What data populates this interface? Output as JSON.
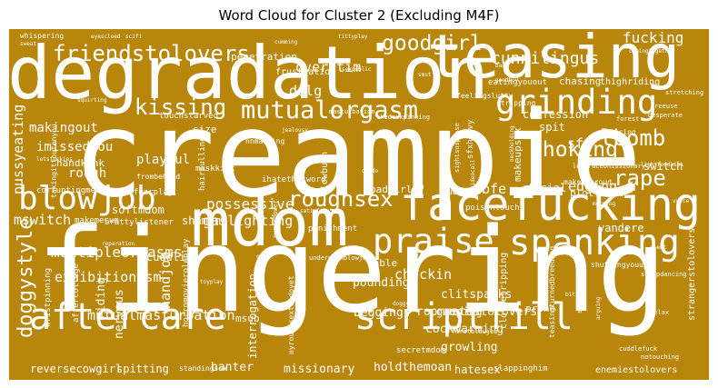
{
  "chart_data": {
    "type": "wordcloud",
    "title": "Word Cloud for Cluster 2 (Excluding M4F)",
    "colors": {
      "background": "#b8860b",
      "word": "#ffffff"
    },
    "words": [
      {
        "text": "creampie",
        "weight": 100
      },
      {
        "text": "fingering",
        "weight": 96
      },
      {
        "text": "degradation",
        "weight": 58
      },
      {
        "text": "mdom",
        "weight": 54
      },
      {
        "text": "teasing",
        "weight": 48
      },
      {
        "text": "facefucking",
        "weight": 36
      },
      {
        "text": "scriptfill",
        "weight": 30
      },
      {
        "text": "aftercare",
        "weight": 30
      },
      {
        "text": "spanking",
        "weight": 29
      },
      {
        "text": "grinding",
        "weight": 28
      },
      {
        "text": "praise",
        "weight": 28
      },
      {
        "text": "blowjob",
        "weight": 26
      },
      {
        "text": "mutualorgasm",
        "weight": 20
      },
      {
        "text": "friendstolovers",
        "weight": 18
      },
      {
        "text": "kissing",
        "weight": 17
      },
      {
        "text": "roughsex",
        "weight": 17
      },
      {
        "text": "lbomb",
        "weight": 17
      },
      {
        "text": "choking",
        "weight": 17
      },
      {
        "text": "rape",
        "weight": 17
      },
      {
        "text": "goodgirl",
        "weight": 16
      },
      {
        "text": "doggystyle",
        "weight": 16
      },
      {
        "text": "cunnilingus",
        "weight": 13
      },
      {
        "text": "fucking",
        "weight": 12
      },
      {
        "text": "possessive",
        "weight": 12
      },
      {
        "text": "multipleorgasms",
        "weight": 12
      },
      {
        "text": "mutualmasturbation",
        "weight": 12
      },
      {
        "text": "pussyeating",
        "weight": 12
      },
      {
        "text": "overstim",
        "weight": 11
      },
      {
        "text": "ddlg",
        "weight": 11
      },
      {
        "text": "handjob",
        "weight": 11
      },
      {
        "text": "exhibitionism",
        "weight": 11
      },
      {
        "text": "mswitch",
        "weight": 11
      },
      {
        "text": "gaslighting",
        "weight": 11
      },
      {
        "text": "edging",
        "weight": 11
      },
      {
        "text": "bfe",
        "weight": 11
      },
      {
        "text": "checkin",
        "weight": 11
      },
      {
        "text": "sfx",
        "weight": 11
      },
      {
        "text": "makingout",
        "weight": 11
      },
      {
        "text": "imissedyou",
        "weight": 11
      },
      {
        "text": "rough",
        "weight": 11
      },
      {
        "text": "playful",
        "weight": 11
      },
      {
        "text": "roommatestolovers",
        "weight": 10
      },
      {
        "text": "cockwarming",
        "weight": 10
      },
      {
        "text": "clitspanks",
        "weight": 10
      },
      {
        "text": "begging",
        "weight": 10
      },
      {
        "text": "growling",
        "weight": 10
      },
      {
        "text": "groping",
        "weight": 10
      },
      {
        "text": "pounding",
        "weight": 10
      },
      {
        "text": "riding",
        "weight": 10
      },
      {
        "text": "nervous",
        "weight": 10
      },
      {
        "text": "banter",
        "weight": 10
      },
      {
        "text": "missionary",
        "weight": 10
      },
      {
        "text": "holdthemoan",
        "weight": 9
      },
      {
        "text": "hatesex",
        "weight": 9
      },
      {
        "text": "reversecowgirl",
        "weight": 9
      },
      {
        "text": "spitting",
        "weight": 9
      },
      {
        "text": "interrogation",
        "weight": 9
      },
      {
        "text": "cuddling",
        "weight": 9
      },
      {
        "text": "shaming",
        "weight": 9
      },
      {
        "text": "softmdom",
        "weight": 9
      },
      {
        "text": "switch",
        "weight": 9
      },
      {
        "text": "yandere",
        "weight": 9
      },
      {
        "text": "facial",
        "weight": 9
      },
      {
        "text": "spit",
        "weight": 9
      },
      {
        "text": "confession",
        "weight": 9
      },
      {
        "text": "makeupsex",
        "weight": 9
      },
      {
        "text": "prone",
        "weight": 9
      },
      {
        "text": "msub",
        "weight": 9
      },
      {
        "text": "table",
        "weight": 9
      },
      {
        "text": "size",
        "weight": 8
      },
      {
        "text": "handkink",
        "weight": 8
      },
      {
        "text": "badgirl",
        "weight": 8
      },
      {
        "text": "penetration",
        "weight": 8
      },
      {
        "text": "chasing",
        "weight": 8
      },
      {
        "text": "plottwist",
        "weight": 8
      },
      {
        "text": "frustration",
        "weight": 8
      },
      {
        "text": "stripping",
        "weight": 8
      },
      {
        "text": "thighriding",
        "weight": 8
      },
      {
        "text": "touchstarved",
        "weight": 7
      },
      {
        "text": "eatingyouout",
        "weight": 7
      },
      {
        "text": "feelingslutty",
        "weight": 7
      },
      {
        "text": "slowburn",
        "weight": 7
      },
      {
        "text": "maskkink",
        "weight": 7
      },
      {
        "text": "hairpulling",
        "weight": 7
      },
      {
        "text": "ihatethatword",
        "weight": 7
      },
      {
        "text": "dubcon",
        "weight": 7
      },
      {
        "text": "punishment",
        "weight": 7
      },
      {
        "text": "poisontouch",
        "weight": 7
      },
      {
        "text": "makemecum",
        "weight": 7
      },
      {
        "text": "brattylistener",
        "weight": 7
      },
      {
        "text": "corruptingme",
        "weight": 7
      },
      {
        "text": "fearplay",
        "weight": 7
      },
      {
        "text": "clothesripping",
        "weight": 7
      },
      {
        "text": "strangerstolovers",
        "weight": 7
      },
      {
        "text": "enemiestolovers",
        "weight": 7
      },
      {
        "text": "slappinghim",
        "weight": 7
      },
      {
        "text": "secretmdom",
        "weight": 7
      },
      {
        "text": "aftercollege",
        "weight": 6
      },
      {
        "text": "wristpinning",
        "weight": 6
      },
      {
        "text": "horromovieroleplay",
        "weight": 6
      },
      {
        "text": "sfxheavy",
        "weight": 6
      },
      {
        "text": "dancing",
        "weight": 6
      },
      {
        "text": "shuttingyouup",
        "weight": 6
      },
      {
        "text": "teasingturnedbreeding",
        "weight": 6
      },
      {
        "text": "whispering",
        "weight": 5
      },
      {
        "text": "frombehind",
        "weight": 5
      },
      {
        "text": "takingittoutonyou",
        "weight": 5
      },
      {
        "text": "myroughsextaudoyet",
        "weight": 5
      },
      {
        "text": "standingsex",
        "weight": 5
      },
      {
        "text": "makemeproud",
        "weight": 5
      },
      {
        "text": "nnmasking",
        "weight": 5
      },
      {
        "text": "legeraceonissionary",
        "weight": 4
      },
      {
        "text": "switchysoftedom",
        "weight": 4
      },
      {
        "text": "firstblowjob",
        "weight": 4
      },
      {
        "text": "sightsuspense",
        "weight": 4
      },
      {
        "text": "thedeskpinning",
        "weight": 4
      },
      {
        "text": "underdeskblowjob",
        "weight": 4
      },
      {
        "text": "superpower",
        "weight": 4
      },
      {
        "text": "stripdancing",
        "weight": 4
      },
      {
        "text": "eyescloed",
        "weight": 3
      },
      {
        "text": "scifi",
        "weight": 3
      },
      {
        "text": "masturbation",
        "weight": 3
      },
      {
        "text": "relax",
        "weight": 3
      },
      {
        "text": "sweat",
        "weight": 3
      },
      {
        "text": "cuddlefuck",
        "weight": 3
      },
      {
        "text": "notouching",
        "weight": 3
      },
      {
        "text": "stretching",
        "weight": 3
      },
      {
        "text": "desperate",
        "weight": 3
      },
      {
        "text": "freeuse",
        "weight": 3
      },
      {
        "text": "forest",
        "weight": 3
      },
      {
        "text": "baby",
        "weight": 3
      },
      {
        "text": "morning",
        "weight": 3
      },
      {
        "text": "arguing",
        "weight": 3
      },
      {
        "text": "biting",
        "weight": 3
      },
      {
        "text": "oral",
        "weight": 3
      },
      {
        "text": "doggy",
        "weight": 3
      },
      {
        "text": "voice",
        "weight": 3
      },
      {
        "text": "tittyplay",
        "weight": 3
      },
      {
        "text": "sexpublic",
        "weight": 3
      },
      {
        "text": "satisfy",
        "weight": 3
      },
      {
        "text": "videocall",
        "weight": 3
      },
      {
        "text": "neckholding",
        "weight": 3
      },
      {
        "text": "cumming",
        "weight": 3
      },
      {
        "text": "smut",
        "weight": 3
      },
      {
        "text": "dildo",
        "weight": 3
      },
      {
        "text": "toyplay",
        "weight": 3
      },
      {
        "text": "reparation",
        "weight": 3
      },
      {
        "text": "scent",
        "weight": 3
      },
      {
        "text": "lightfoodkink",
        "weight": 3
      },
      {
        "text": "comingtogether",
        "weight": 3
      },
      {
        "text": "goodboy",
        "weight": 3
      },
      {
        "text": "jealousy",
        "weight": 3
      },
      {
        "text": "letsfuckies",
        "weight": 3
      },
      {
        "text": "squirting",
        "weight": 3
      }
    ]
  }
}
